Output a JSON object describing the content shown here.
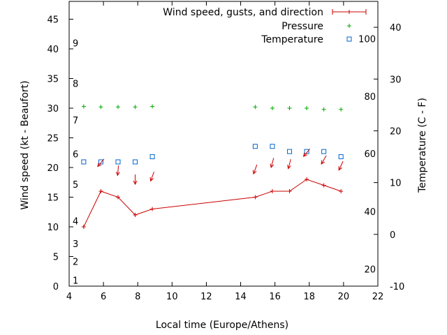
{
  "chart_data": {
    "type": "line",
    "xlabel": "Local time (Europe/Athens)",
    "ylabel": "Wind speed (kt - Beaufort)",
    "y2label": "Temperature (C - F)",
    "xlim": [
      4,
      22
    ],
    "ylim": [
      0,
      48
    ],
    "y2lim": [
      -10,
      45
    ],
    "xticks": [
      4,
      6,
      8,
      10,
      12,
      14,
      16,
      18,
      20,
      22
    ],
    "yticks": [
      0,
      5,
      10,
      15,
      20,
      25,
      30,
      35,
      40,
      45
    ],
    "y2ticks": [
      -10,
      0,
      10,
      20,
      30,
      40
    ],
    "beaufort_labels": [
      {
        "label": "1",
        "y": 1
      },
      {
        "label": "2",
        "y": 4.2
      },
      {
        "label": "3",
        "y": 7.2
      },
      {
        "label": "4",
        "y": 11
      },
      {
        "label": "5",
        "y": 17.2
      },
      {
        "label": "6",
        "y": 22.3
      },
      {
        "label": "7",
        "y": 28
      },
      {
        "label": "8",
        "y": 34.2
      },
      {
        "label": "9",
        "y": 41
      }
    ],
    "fahrenheit_labels": [
      {
        "label": "20",
        "y2": -6.7
      },
      {
        "label": "40",
        "y2": 4.4
      },
      {
        "label": "60",
        "y2": 15.6
      },
      {
        "label": "80",
        "y2": 26.7
      },
      {
        "label": "100",
        "y2": 37.8
      }
    ],
    "legend": {
      "position": "top-right",
      "wind": "Wind speed, gusts, and direction",
      "pressure": "Pressure",
      "temperature": "Temperature"
    },
    "colors": {
      "wind": "#cc0000",
      "pressure": "#00aa00",
      "temperature": "#0066cc"
    },
    "series": [
      {
        "name": "Wind speed, gusts, and direction",
        "x": [
          4.85,
          5.85,
          6.85,
          7.85,
          8.85,
          14.85,
          15.85,
          16.85,
          17.85,
          18.85,
          19.85
        ],
        "y": [
          10,
          16,
          15,
          12,
          13,
          15,
          16,
          16,
          18,
          17,
          16
        ]
      },
      {
        "name": "Pressure",
        "x": [
          4.85,
          5.85,
          6.85,
          7.85,
          8.85,
          14.85,
          15.85,
          16.85,
          17.85,
          18.85,
          19.85
        ],
        "y": [
          30.3,
          30.2,
          30.2,
          30.2,
          30.3,
          30.2,
          30.0,
          30.0,
          30.0,
          29.8,
          29.8
        ]
      },
      {
        "name": "Temperature",
        "x": [
          4.85,
          5.85,
          6.85,
          7.85,
          8.85,
          14.85,
          15.85,
          16.85,
          17.85,
          18.85,
          19.85
        ],
        "y2": [
          14,
          14,
          14,
          14,
          15,
          17,
          17,
          16,
          16,
          16,
          15
        ]
      }
    ],
    "wind_arrows": {
      "x": [
        5.85,
        6.85,
        7.85,
        8.85,
        14.85,
        15.85,
        16.85,
        17.85,
        18.85,
        19.85
      ],
      "y": [
        20.8,
        19.5,
        18.0,
        18.5,
        19.7,
        20.8,
        20.6,
        22.5,
        21.3,
        20.3
      ],
      "direction_deg": [
        40,
        5,
        0,
        20,
        20,
        15,
        15,
        40,
        30,
        25
      ]
    }
  }
}
